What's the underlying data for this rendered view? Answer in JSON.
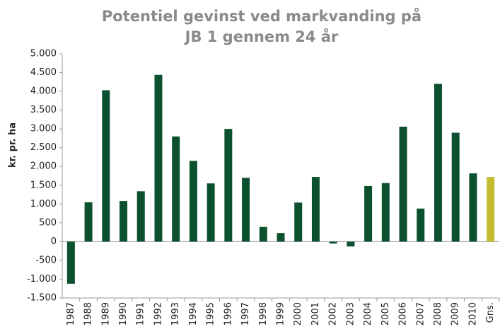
{
  "chart_data": {
    "type": "bar",
    "title": [
      "Potentiel gevinst ved markvanding på",
      "JB 1 gennem 24 år"
    ],
    "y_label": "kr. pr. ha",
    "categories": [
      "1987",
      "1988",
      "1989",
      "1990",
      "1991",
      "1992",
      "1993",
      "1994",
      "1995",
      "1996",
      "1997",
      "1998",
      "1999",
      "2000",
      "2001",
      "2002",
      "2003",
      "2004",
      "2005",
      "2006",
      "2007",
      "2008",
      "2009",
      "2010",
      "Gns."
    ],
    "values": [
      -1120,
      1050,
      4030,
      1080,
      1340,
      4440,
      2800,
      2150,
      1550,
      3000,
      1700,
      390,
      230,
      1040,
      1720,
      -50,
      -130,
      1480,
      1560,
      3060,
      880,
      4200,
      2900,
      1820,
      1720
    ],
    "colors": [
      "#0b5130",
      "#0b5130",
      "#0b5130",
      "#0b5130",
      "#0b5130",
      "#0b5130",
      "#0b5130",
      "#0b5130",
      "#0b5130",
      "#0b5130",
      "#0b5130",
      "#0b5130",
      "#0b5130",
      "#0b5130",
      "#0b5130",
      "#0b5130",
      "#0b5130",
      "#0b5130",
      "#0b5130",
      "#0b5130",
      "#0b5130",
      "#0b5130",
      "#0b5130",
      "#0b5130",
      "#c3bd2e"
    ],
    "ylim": [
      -1500,
      5000
    ],
    "yticks": [
      {
        "value": 5000,
        "label": "5.000"
      },
      {
        "value": 4500,
        "label": "4.500"
      },
      {
        "value": 4000,
        "label": "4.000"
      },
      {
        "value": 3500,
        "label": "3.500"
      },
      {
        "value": 3000,
        "label": "3.000"
      },
      {
        "value": 2500,
        "label": "2.500"
      },
      {
        "value": 2000,
        "label": "2.000"
      },
      {
        "value": 1500,
        "label": "1.500"
      },
      {
        "value": 1000,
        "label": "1.000"
      },
      500,
      0,
      -500,
      {
        "value": -1000,
        "label": "-1.000"
      },
      {
        "value": -1500,
        "label": "-1.500"
      }
    ],
    "grid": false
  }
}
